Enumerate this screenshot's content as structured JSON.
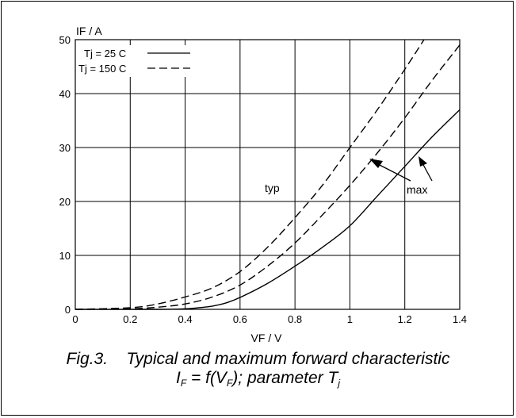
{
  "colors": {
    "line": "#000000",
    "background": "#ffffff",
    "grid": "#000000"
  },
  "caption": {
    "fig_label": "Fig.3.",
    "title": "Typical and maximum forward characteristic",
    "formula_prefix": "I",
    "formula_sub1": "F",
    "formula_mid": " = f(V",
    "formula_sub2": "F",
    "formula_end": "); parameter T",
    "formula_sub3": "j"
  },
  "chart_data": {
    "type": "line",
    "title": "",
    "xlabel": "VF / V",
    "ylabel": "IF / A",
    "xlim": [
      0,
      1.4
    ],
    "ylim": [
      0,
      50
    ],
    "xticks": [
      "0",
      "0.2",
      "0.4",
      "0.6",
      "0.8",
      "1",
      "1.2",
      "1.4"
    ],
    "yticks": [
      "0",
      "10",
      "20",
      "30",
      "40",
      "50"
    ],
    "grid": true,
    "legend": {
      "placement": "top-left",
      "entries": [
        {
          "label": "Tj = 25 C",
          "style": "solid"
        },
        {
          "label": "Tj = 150 C",
          "style": "dashed"
        }
      ]
    },
    "annotations": [
      {
        "text": "typ",
        "x": 0.71,
        "y": 22
      },
      {
        "text": "max",
        "x": 1.25,
        "y": 21.5
      }
    ],
    "series": [
      {
        "style": "solid",
        "x": [
          0,
          0.3,
          0.4,
          0.45,
          0.5,
          0.55,
          0.6,
          0.7,
          0.8,
          0.9,
          1.0,
          1.1,
          1.2,
          1.3,
          1.4
        ],
        "y": [
          0,
          0,
          0.1,
          0.3,
          0.6,
          1.2,
          2.2,
          4.8,
          8.0,
          11.5,
          15.5,
          21.0,
          26.5,
          32.0,
          37.0
        ]
      },
      {
        "style": "dashed",
        "x": [
          0,
          0.2,
          0.3,
          0.4,
          0.5,
          0.6,
          0.7,
          0.8,
          0.9,
          1.0,
          1.1,
          1.2,
          1.3,
          1.4
        ],
        "y": [
          0,
          0.1,
          0.4,
          1.0,
          2.3,
          4.5,
          8.0,
          12.3,
          17.5,
          23.0,
          29.0,
          35.5,
          42.5,
          49.0
        ]
      },
      {
        "style": "dashed",
        "x": [
          0,
          0.2,
          0.3,
          0.4,
          0.5,
          0.6,
          0.7,
          0.8,
          0.9,
          1.0,
          1.1,
          1.2,
          1.27
        ],
        "y": [
          0,
          0.3,
          1.0,
          2.3,
          4.0,
          7.0,
          11.5,
          17.0,
          23.0,
          30.0,
          37.0,
          44.5,
          50.0
        ]
      }
    ]
  }
}
